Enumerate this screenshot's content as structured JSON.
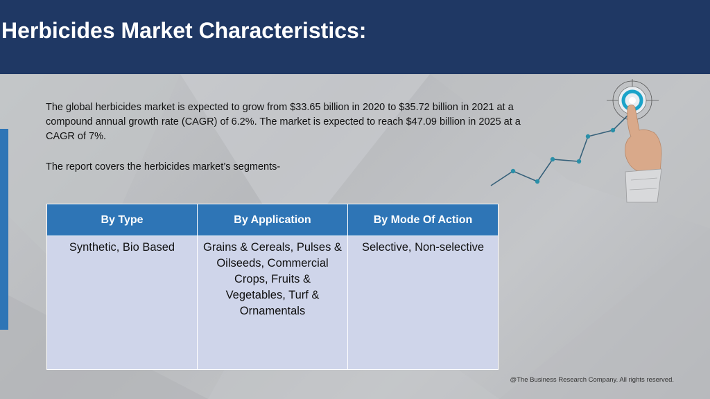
{
  "slide": {
    "title": "Herbicides Market Characteristics:",
    "paragraphs": [
      "The global herbicides market is expected to grow from $33.65 billion in 2020 to $35.72 billion in 2021 at a compound annual growth rate (CAGR) of 6.2%. The market is expected to reach $47.09 billion in 2025 at a CAGR of 7%.",
      "The report covers the herbicides market’s segments-"
    ]
  },
  "table": {
    "headers": [
      "By Type",
      "By Application",
      "By Mode Of Action"
    ],
    "rows": [
      [
        "Synthetic, Bio Based",
        "Grains & Cereals, Pulses & Oilseeds, Commercial Crops, Fruits & Vegetables, Turf & Ornamentals",
        "Selective, Non-selective"
      ]
    ]
  },
  "graphic": {
    "icon": "hand-touching-target-growth-chart-icon",
    "colors": {
      "line": "#37617a",
      "dot": "#2a8fa8",
      "target": "#1aa3c9"
    }
  },
  "footer": {
    "copyright": "@The Business Research Company. All rights reserved."
  },
  "colors": {
    "header_bg": "#1f3864",
    "table_header_bg": "#2e75b6",
    "table_cell_bg": "#cfd5ea",
    "accent_bar": "#2e75b6"
  }
}
